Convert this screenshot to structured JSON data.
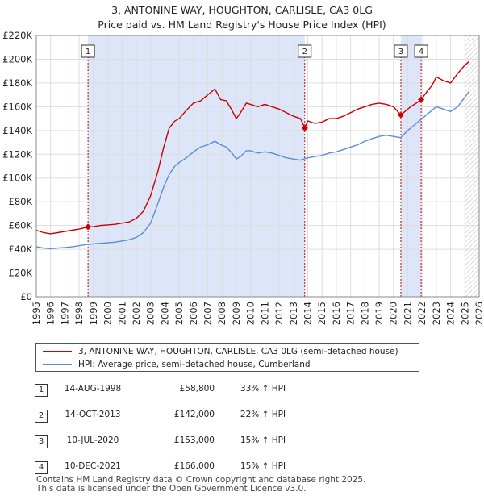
{
  "title_line1": "3, ANTONINE WAY, HOUGHTON, CARLISLE, CA3 0LG",
  "title_line2": "Price paid vs. HM Land Registry's House Price Index (HPI)",
  "chart_data": {
    "type": "line",
    "xlim": [
      1995,
      2026
    ],
    "ylim": [
      0,
      220000
    ],
    "y_ticks": [
      {
        "value": 0,
        "label": "£0"
      },
      {
        "value": 20000,
        "label": "£20K"
      },
      {
        "value": 40000,
        "label": "£40K"
      },
      {
        "value": 60000,
        "label": "£60K"
      },
      {
        "value": 80000,
        "label": "£80K"
      },
      {
        "value": 100000,
        "label": "£100K"
      },
      {
        "value": 120000,
        "label": "£120K"
      },
      {
        "value": 140000,
        "label": "£140K"
      },
      {
        "value": 160000,
        "label": "£160K"
      },
      {
        "value": 180000,
        "label": "£180K"
      },
      {
        "value": 200000,
        "label": "£200K"
      },
      {
        "value": 220000,
        "label": "£220K"
      }
    ],
    "x_ticks": [
      "1995",
      "1996",
      "1997",
      "1998",
      "1999",
      "2000",
      "2001",
      "2002",
      "2003",
      "2004",
      "2005",
      "2006",
      "2007",
      "2008",
      "2009",
      "2010",
      "2011",
      "2012",
      "2013",
      "2014",
      "2015",
      "2016",
      "2017",
      "2018",
      "2019",
      "2020",
      "2021",
      "2022",
      "2023",
      "2024",
      "2025",
      "2026"
    ],
    "grid": true,
    "shaded_regions": [
      {
        "from": 1998.62,
        "to": 2013.79,
        "color": "#dce6f8"
      },
      {
        "from": 2020.52,
        "to": 2021.94,
        "color": "#dce6f8"
      }
    ],
    "forecast_hatch_from": 2025.0,
    "series": [
      {
        "name": "3, ANTONINE WAY, HOUGHTON, CARLISLE, CA3 0LG (semi-detached house)",
        "color": "#cc0000",
        "x": [
          1995.0,
          1995.5,
          1996.0,
          1996.5,
          1997.0,
          1997.5,
          1998.0,
          1998.62,
          1999.0,
          1999.5,
          2000.0,
          2000.5,
          2001.0,
          2001.5,
          2002.0,
          2002.5,
          2003.0,
          2003.5,
          2003.9,
          2004.3,
          2004.7,
          2005.0,
          2005.5,
          2006.0,
          2006.5,
          2007.0,
          2007.5,
          2007.9,
          2008.3,
          2008.7,
          2009.0,
          2009.3,
          2009.7,
          2010.0,
          2010.5,
          2011.0,
          2011.5,
          2012.0,
          2012.5,
          2013.0,
          2013.5,
          2013.79,
          2014.0,
          2014.5,
          2015.0,
          2015.5,
          2016.0,
          2016.5,
          2017.0,
          2017.5,
          2018.0,
          2018.5,
          2019.0,
          2019.5,
          2020.0,
          2020.52,
          2020.8,
          2021.2,
          2021.6,
          2021.94,
          2022.3,
          2022.7,
          2023.0,
          2023.5,
          2024.0,
          2024.5,
          2025.0,
          2025.3
        ],
        "values": [
          56000,
          54000,
          53000,
          54000,
          55000,
          56000,
          57000,
          58800,
          59000,
          60000,
          60500,
          61000,
          62000,
          63000,
          66000,
          72000,
          85000,
          105000,
          125000,
          142000,
          148000,
          150000,
          157000,
          163000,
          165000,
          170000,
          175000,
          166000,
          165000,
          157000,
          150000,
          155000,
          163000,
          162000,
          160000,
          162000,
          160000,
          158000,
          155000,
          152000,
          150000,
          142000,
          148000,
          146000,
          147000,
          150000,
          150000,
          152000,
          155000,
          158000,
          160000,
          162000,
          163000,
          162000,
          160000,
          153000,
          156000,
          160000,
          163000,
          166000,
          172000,
          178000,
          185000,
          182000,
          180000,
          188000,
          195000,
          198000
        ]
      },
      {
        "name": "HPI: Average price, semi-detached house, Cumberland",
        "color": "#5b8ed6",
        "x": [
          1995.0,
          1995.5,
          1996.0,
          1996.5,
          1997.0,
          1997.5,
          1998.0,
          1998.5,
          1999.0,
          1999.5,
          2000.0,
          2000.5,
          2001.0,
          2001.5,
          2002.0,
          2002.5,
          2003.0,
          2003.5,
          2003.9,
          2004.3,
          2004.7,
          2005.0,
          2005.5,
          2006.0,
          2006.5,
          2007.0,
          2007.5,
          2007.9,
          2008.3,
          2008.7,
          2009.0,
          2009.3,
          2009.7,
          2010.0,
          2010.5,
          2011.0,
          2011.5,
          2012.0,
          2012.5,
          2013.0,
          2013.5,
          2014.0,
          2014.5,
          2015.0,
          2015.5,
          2016.0,
          2016.5,
          2017.0,
          2017.5,
          2018.0,
          2018.5,
          2019.0,
          2019.5,
          2020.0,
          2020.5,
          2021.0,
          2021.5,
          2022.0,
          2022.5,
          2023.0,
          2023.5,
          2024.0,
          2024.5,
          2025.0,
          2025.3
        ],
        "values": [
          42000,
          41000,
          40500,
          41000,
          41500,
          42000,
          43000,
          44000,
          44500,
          45000,
          45500,
          46000,
          47000,
          48000,
          50000,
          54000,
          62000,
          78000,
          92000,
          103000,
          110000,
          113000,
          117000,
          122000,
          126000,
          128000,
          131000,
          128000,
          126000,
          121000,
          116000,
          118000,
          123000,
          123000,
          121000,
          122000,
          121000,
          119000,
          117000,
          116000,
          115000,
          117000,
          118000,
          119000,
          121000,
          122000,
          124000,
          126000,
          128000,
          131000,
          133000,
          135000,
          136000,
          135000,
          134000,
          140000,
          145000,
          150000,
          155000,
          160000,
          158000,
          156000,
          160000,
          168000,
          173000
        ]
      }
    ],
    "markers": [
      {
        "label": "1",
        "x": 1998.62,
        "y": 58800
      },
      {
        "label": "2",
        "x": 2013.79,
        "y": 142000
      },
      {
        "label": "3",
        "x": 2020.52,
        "y": 153000
      },
      {
        "label": "4",
        "x": 2021.94,
        "y": 166000
      }
    ]
  },
  "legend": [
    {
      "label": "3, ANTONINE WAY, HOUGHTON, CARLISLE, CA3 0LG (semi-detached house)",
      "color": "#cc0000"
    },
    {
      "label": "HPI: Average price, semi-detached house, Cumberland",
      "color": "#5b8ed6"
    }
  ],
  "sales": [
    {
      "num": "1",
      "date": "14-AUG-1998",
      "price": "£58,800",
      "delta": "33% ↑ HPI"
    },
    {
      "num": "2",
      "date": "14-OCT-2013",
      "price": "£142,000",
      "delta": "22% ↑ HPI"
    },
    {
      "num": "3",
      "date": "10-JUL-2020",
      "price": "£153,000",
      "delta": "15% ↑ HPI"
    },
    {
      "num": "4",
      "date": "10-DEC-2021",
      "price": "£166,000",
      "delta": "15% ↑ HPI"
    }
  ],
  "footer_line1": "Contains HM Land Registry data © Crown copyright and database right 2025.",
  "footer_line2": "This data is licensed under the Open Government Licence v3.0."
}
